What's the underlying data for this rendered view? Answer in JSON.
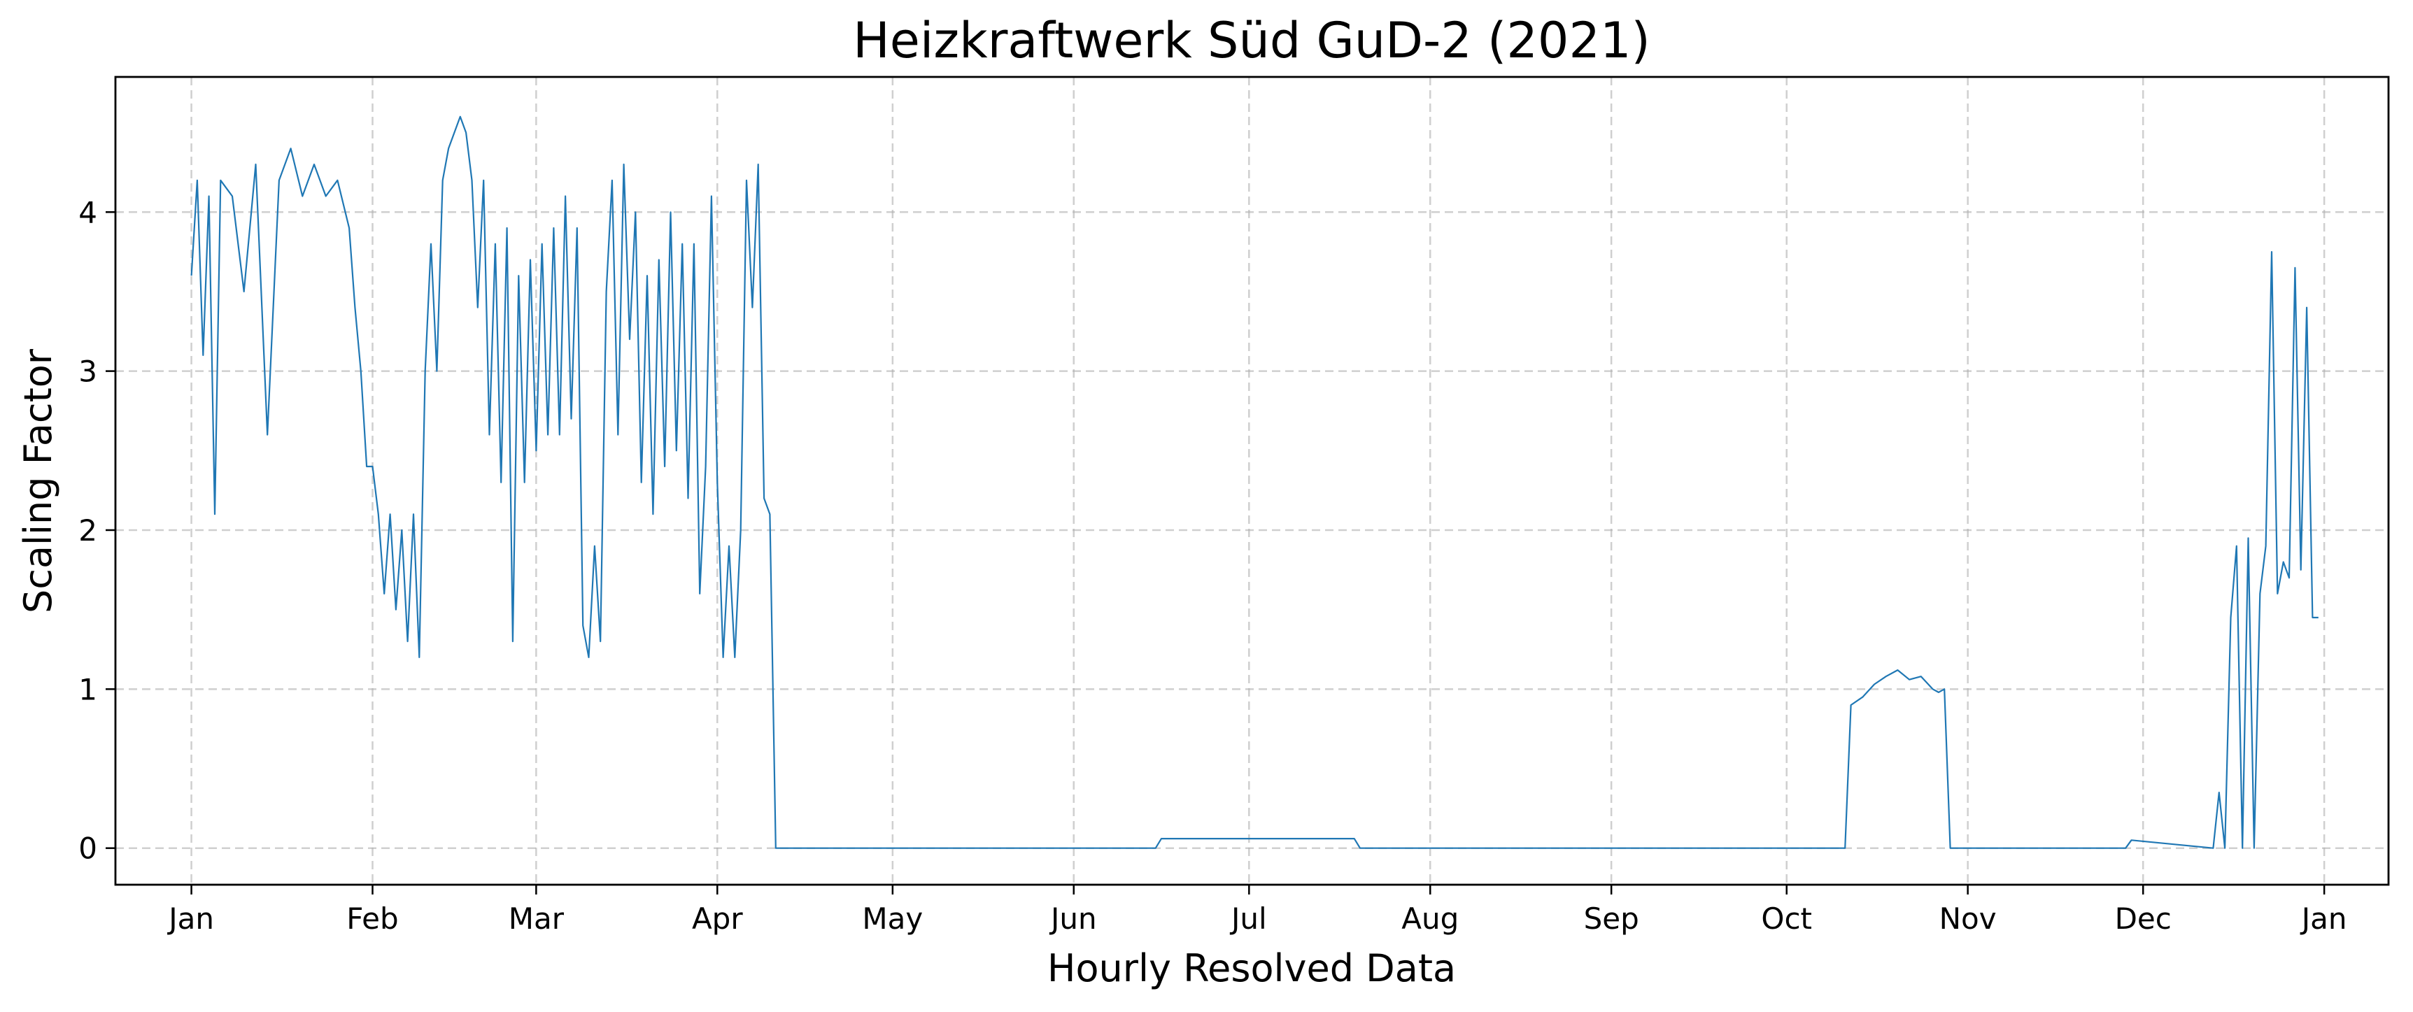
{
  "chart_data": {
    "type": "line",
    "title": "Heizkraftwerk Süd GuD-2 (2021)",
    "xlabel": "Hourly Resolved Data",
    "ylabel": "Scaling Factor",
    "x_unit": "date",
    "xlim": [
      "2020-12-19",
      "2022-01-12"
    ],
    "ylim": [
      -0.23,
      4.85
    ],
    "grid": true,
    "x_ticks": [
      {
        "date": "2021-01-01",
        "label": "Jan"
      },
      {
        "date": "2021-02-01",
        "label": "Feb"
      },
      {
        "date": "2021-03-01",
        "label": "Mar"
      },
      {
        "date": "2021-04-01",
        "label": "Apr"
      },
      {
        "date": "2021-05-01",
        "label": "May"
      },
      {
        "date": "2021-06-01",
        "label": "Jun"
      },
      {
        "date": "2021-07-01",
        "label": "Jul"
      },
      {
        "date": "2021-08-01",
        "label": "Aug"
      },
      {
        "date": "2021-09-01",
        "label": "Sep"
      },
      {
        "date": "2021-10-01",
        "label": "Oct"
      },
      {
        "date": "2021-11-01",
        "label": "Nov"
      },
      {
        "date": "2021-12-01",
        "label": "Dec"
      },
      {
        "date": "2022-01-01",
        "label": "Jan"
      }
    ],
    "y_ticks": [
      {
        "value": 0,
        "label": "0"
      },
      {
        "value": 1,
        "label": "1"
      },
      {
        "value": 2,
        "label": "2"
      },
      {
        "value": 3,
        "label": "3"
      },
      {
        "value": 4,
        "label": "4"
      }
    ],
    "series": [
      {
        "color": "#1f77b4",
        "x": [
          "2021-01-01",
          "2021-01-02",
          "2021-01-03",
          "2021-01-04",
          "2021-01-05",
          "2021-01-06",
          "2021-01-08",
          "2021-01-10",
          "2021-01-12",
          "2021-01-14",
          "2021-01-16",
          "2021-01-18",
          "2021-01-20",
          "2021-01-22",
          "2021-01-24",
          "2021-01-26",
          "2021-01-28",
          "2021-01-29",
          "2021-01-30",
          "2021-01-31",
          "2021-02-01",
          "2021-02-02",
          "2021-02-03",
          "2021-02-04",
          "2021-02-05",
          "2021-02-06",
          "2021-02-07",
          "2021-02-08",
          "2021-02-09",
          "2021-02-10",
          "2021-02-11",
          "2021-02-12",
          "2021-02-13",
          "2021-02-14",
          "2021-02-15",
          "2021-02-16",
          "2021-02-17",
          "2021-02-18",
          "2021-02-19",
          "2021-02-20",
          "2021-02-21",
          "2021-02-22",
          "2021-02-23",
          "2021-02-24",
          "2021-02-25",
          "2021-02-26",
          "2021-02-27",
          "2021-02-28",
          "2021-03-01",
          "2021-03-02",
          "2021-03-03",
          "2021-03-04",
          "2021-03-05",
          "2021-03-06",
          "2021-03-07",
          "2021-03-08",
          "2021-03-09",
          "2021-03-10",
          "2021-03-11",
          "2021-03-12",
          "2021-03-13",
          "2021-03-14",
          "2021-03-15",
          "2021-03-16",
          "2021-03-17",
          "2021-03-18",
          "2021-03-19",
          "2021-03-20",
          "2021-03-21",
          "2021-03-22",
          "2021-03-23",
          "2021-03-24",
          "2021-03-25",
          "2021-03-26",
          "2021-03-27",
          "2021-03-28",
          "2021-03-29",
          "2021-03-30",
          "2021-03-31",
          "2021-04-01",
          "2021-04-02",
          "2021-04-03",
          "2021-04-04",
          "2021-04-05",
          "2021-04-06",
          "2021-04-07",
          "2021-04-08",
          "2021-04-09",
          "2021-04-10",
          "2021-04-11",
          "2021-06-15",
          "2021-06-16",
          "2021-07-19",
          "2021-07-20",
          "2021-10-11",
          "2021-10-12",
          "2021-10-14",
          "2021-10-16",
          "2021-10-18",
          "2021-10-20",
          "2021-10-22",
          "2021-10-24",
          "2021-10-26",
          "2021-10-27",
          "2021-10-28",
          "2021-10-29",
          "2021-11-28",
          "2021-11-29",
          "2021-12-13",
          "2021-12-14",
          "2021-12-15",
          "2021-12-16",
          "2021-12-17",
          "2021-12-18",
          "2021-12-19",
          "2021-12-20",
          "2021-12-21",
          "2021-12-22",
          "2021-12-23",
          "2021-12-24",
          "2021-12-25",
          "2021-12-26",
          "2021-12-27",
          "2021-12-28",
          "2021-12-29",
          "2021-12-30",
          "2021-12-31"
        ],
        "y": [
          3.6,
          4.2,
          3.1,
          4.1,
          2.1,
          4.2,
          4.1,
          3.5,
          4.3,
          2.6,
          4.2,
          4.4,
          4.1,
          4.3,
          4.1,
          4.2,
          3.9,
          3.4,
          3.0,
          2.4,
          2.4,
          2.1,
          1.6,
          2.1,
          1.5,
          2.0,
          1.3,
          2.1,
          1.2,
          3.0,
          3.8,
          3.0,
          4.2,
          4.4,
          4.5,
          4.6,
          4.5,
          4.2,
          3.4,
          4.2,
          2.6,
          3.8,
          2.3,
          3.9,
          1.3,
          3.6,
          2.3,
          3.7,
          2.5,
          3.8,
          2.6,
          3.9,
          2.6,
          4.1,
          2.7,
          3.9,
          1.4,
          1.2,
          1.9,
          1.3,
          3.5,
          4.2,
          2.6,
          4.3,
          3.2,
          4.0,
          2.3,
          3.6,
          2.1,
          3.7,
          2.4,
          4.0,
          2.5,
          3.8,
          2.2,
          3.8,
          1.6,
          2.4,
          4.1,
          2.3,
          1.2,
          1.9,
          1.2,
          2.0,
          4.2,
          3.4,
          4.3,
          2.2,
          2.1,
          0.0,
          0.0,
          0.06,
          0.06,
          0.0,
          0.0,
          0.9,
          0.95,
          1.03,
          1.08,
          1.12,
          1.06,
          1.08,
          1.0,
          0.98,
          1.0,
          0.0,
          0.0,
          0.05,
          0.0,
          0.35,
          0.0,
          1.45,
          1.9,
          0.0,
          1.95,
          0.0,
          1.6,
          1.9,
          3.75,
          1.6,
          1.8,
          1.7,
          3.65,
          1.75,
          3.4,
          1.45,
          1.45
        ]
      }
    ]
  }
}
